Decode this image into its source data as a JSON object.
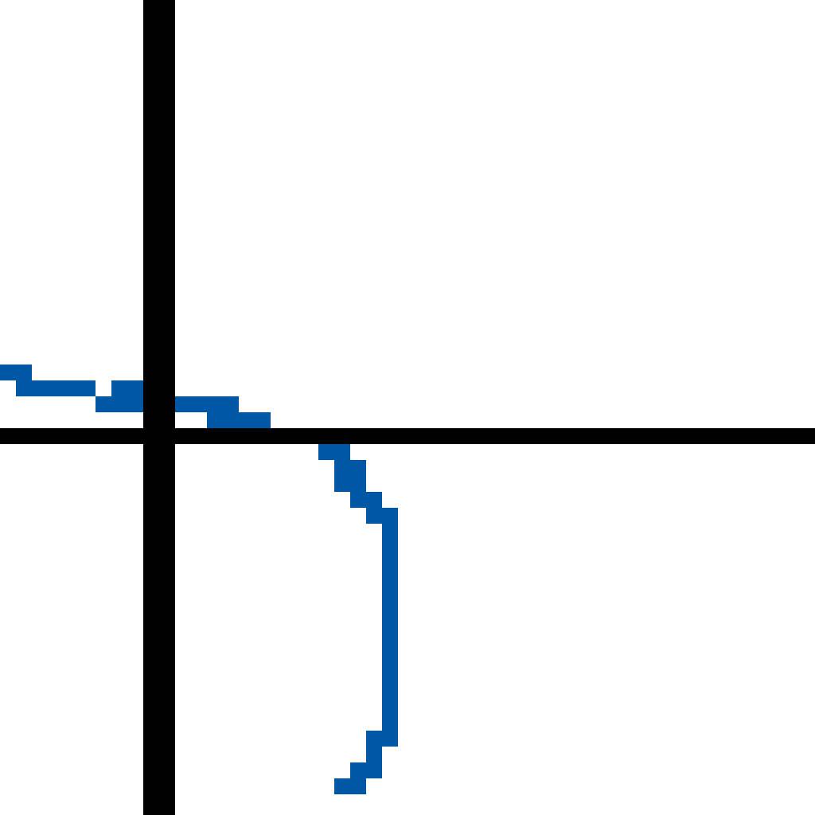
{
  "chart_data": {
    "type": "scatter",
    "title": "",
    "xlabel": "",
    "ylabel": "",
    "grid": false,
    "legend": "none",
    "xlim": [
      -9.5,
      41.7
    ],
    "ylim": [
      -23.8,
      27.4
    ],
    "series": [
      {
        "color": "#0057a4",
        "points": [
          [
            -9,
            4
          ],
          [
            -8,
            4
          ],
          [
            -8,
            3
          ],
          [
            -7,
            3
          ],
          [
            -6,
            3
          ],
          [
            -5,
            3
          ],
          [
            -4,
            3
          ],
          [
            -3,
            2
          ],
          [
            -2,
            2
          ],
          [
            -1,
            2
          ],
          [
            -2,
            3
          ],
          [
            -1,
            3
          ],
          [
            1,
            2
          ],
          [
            2,
            2
          ],
          [
            3,
            2
          ],
          [
            4,
            2
          ],
          [
            5,
            2
          ],
          [
            4,
            1
          ],
          [
            5,
            1
          ],
          [
            6,
            1
          ],
          [
            7,
            1
          ],
          [
            10,
            0
          ],
          [
            11,
            -1
          ],
          [
            12,
            -1
          ],
          [
            12,
            -2
          ],
          [
            13,
            -2
          ],
          [
            12,
            -3
          ],
          [
            13,
            -3
          ],
          [
            13,
            -4
          ],
          [
            14,
            -4
          ],
          [
            14,
            -5
          ],
          [
            15,
            -5
          ],
          [
            15,
            -6
          ],
          [
            15,
            -7
          ],
          [
            15,
            -8
          ],
          [
            15,
            -9
          ],
          [
            15,
            -10
          ],
          [
            15,
            -11
          ],
          [
            15,
            -12
          ],
          [
            15,
            -13
          ],
          [
            15,
            -14
          ],
          [
            15,
            -15
          ],
          [
            15,
            -16
          ],
          [
            15,
            -17
          ],
          [
            15,
            -18
          ],
          [
            15,
            -19
          ],
          [
            14,
            -19
          ],
          [
            14,
            -20
          ],
          [
            13,
            -21
          ],
          [
            14,
            -21
          ],
          [
            12,
            -22
          ],
          [
            13,
            -22
          ]
        ]
      }
    ],
    "colors": {
      "axis": "#000000",
      "series": "#0057a4",
      "background": "#ffffff"
    }
  }
}
